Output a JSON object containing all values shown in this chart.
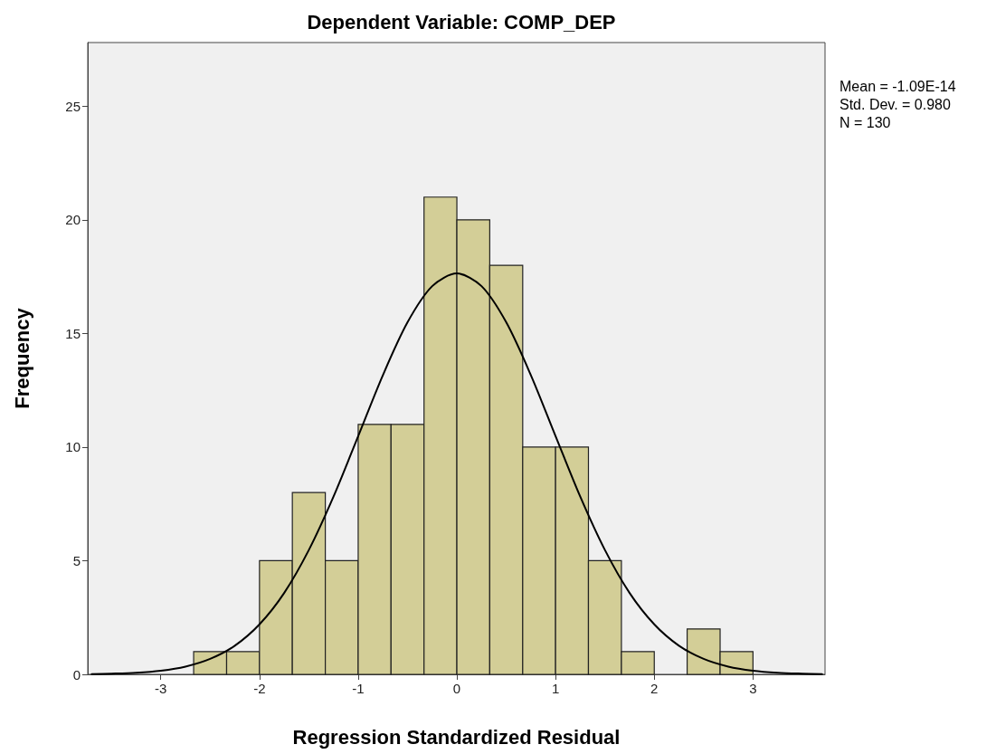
{
  "chart_data": {
    "type": "histogram",
    "title": "Dependent Variable: COMP_DEP",
    "xlabel": "Regression Standardized Residual",
    "ylabel": "Frequency",
    "bins": [
      -2.667,
      -2.333,
      -2,
      -1.667,
      -1.333,
      -1,
      -0.667,
      -0.333,
      0,
      0.333,
      0.667,
      1,
      1.333,
      1.667,
      2,
      2.333,
      2.667,
      3
    ],
    "values": [
      1,
      1,
      5,
      8,
      5,
      11,
      11,
      21,
      20,
      18,
      10,
      10,
      5,
      1,
      0,
      2,
      1
    ],
    "color": "#d3ce97",
    "series": [
      {
        "type": "line",
        "color": "#000000",
        "x": [
          -3.7,
          -3.5,
          -3.25,
          -3,
          -2.75,
          -2.5,
          -2.25,
          -2,
          -1.75,
          -1.5,
          -1.25,
          -1,
          -0.75,
          -0.5,
          -0.25,
          0,
          0.25,
          0.5,
          0.75,
          1,
          1.25,
          1.5,
          1.75,
          2,
          2.25,
          2.5,
          2.75,
          3,
          3.25,
          3.5,
          3.7
        ],
        "values": [
          0.01,
          0.03,
          0.07,
          0.16,
          0.34,
          0.68,
          1.26,
          2.2,
          3.58,
          5.47,
          7.82,
          10.48,
          13.16,
          15.49,
          17.08,
          17.64,
          17.08,
          15.49,
          13.16,
          10.48,
          7.82,
          5.47,
          3.58,
          2.2,
          1.26,
          0.68,
          0.34,
          0.16,
          0.07,
          0.03,
          0.01
        ]
      }
    ],
    "xlim": [
      -3.74,
      3.73
    ],
    "xticks": [
      -3,
      -2,
      -1,
      0,
      1,
      2,
      3
    ],
    "ylim": [
      0,
      27.8
    ],
    "yticks": [
      0,
      5,
      10,
      15,
      20,
      25
    ],
    "grid": false,
    "marker": "none",
    "line_style": "solid",
    "annotations": [
      "Mean = -1.09E-14",
      "Std. Dev. = 0.980",
      "N = 130"
    ]
  }
}
